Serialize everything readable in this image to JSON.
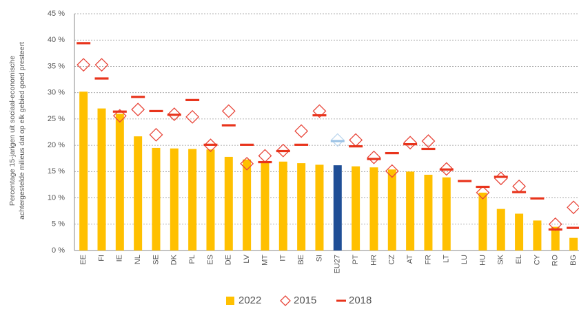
{
  "chart_data": {
    "type": "bar",
    "y_label": [
      "Percentage 15-jarigen uit sociaal-economische",
      "achtergestelde milieus dat op elk gebied goed presteert"
    ],
    "categories": [
      "EE",
      "FI",
      "IE",
      "NL",
      "SE",
      "DK",
      "PL",
      "ES",
      "DE",
      "LV",
      "MT",
      "IT",
      "BE",
      "SI",
      "EU27",
      "PT",
      "HR",
      "CZ",
      "AT",
      "FR",
      "LT",
      "LU",
      "HU",
      "SK",
      "EL",
      "CY",
      "RO",
      "BG"
    ],
    "series": [
      {
        "name": "2022",
        "marker": "bar",
        "color": "#ffc000",
        "colors": [
          "#ffc000",
          "#ffc000",
          "#ffc000",
          "#ffc000",
          "#ffc000",
          "#ffc000",
          "#ffc000",
          "#ffc000",
          "#ffc000",
          "#ffc000",
          "#ffc000",
          "#ffc000",
          "#ffc000",
          "#ffc000",
          "#1f4e96",
          "#ffc000",
          "#ffc000",
          "#ffc000",
          "#ffc000",
          "#ffc000",
          "#ffc000",
          "#ffc000",
          "#ffc000",
          "#ffc000",
          "#ffc000",
          "#ffc000",
          "#ffc000",
          "#ffc000"
        ],
        "values": [
          30.2,
          27,
          26,
          21.7,
          19.5,
          19.4,
          19.3,
          19.2,
          17.8,
          17.3,
          17,
          16.9,
          16.6,
          16.3,
          16.2,
          16,
          15.8,
          15.4,
          15,
          14.4,
          13.9,
          null,
          11,
          7.9,
          7,
          5.7,
          4.5,
          2.4
        ]
      },
      {
        "name": "2015",
        "marker": "diamond",
        "color": "#e8463a",
        "colors": [
          "#e8463a",
          "#e8463a",
          "#e8463a",
          "#e8463a",
          "#e8463a",
          "#e8463a",
          "#e8463a",
          "#e8463a",
          "#e8463a",
          "#e8463a",
          "#e8463a",
          "#e8463a",
          "#e8463a",
          "#e8463a",
          "#bdd7ee",
          "#e8463a",
          "#e8463a",
          "#e8463a",
          "#e8463a",
          "#e8463a",
          "#e8463a",
          "#e8463a",
          "#e8463a",
          "#e8463a",
          "#e8463a",
          "#e8463a",
          "#e8463a",
          "#e8463a"
        ],
        "values": [
          35.3,
          35.3,
          25.6,
          26.8,
          22,
          25.9,
          25.4,
          20,
          26.5,
          16.5,
          18,
          19,
          22.7,
          26.5,
          21,
          21,
          17.7,
          15.1,
          20.5,
          20.8,
          15.5,
          null,
          11,
          13.7,
          12.2,
          null,
          5,
          8.2
        ]
      },
      {
        "name": "2018",
        "marker": "dash",
        "color": "#e8341c",
        "colors": [
          "#e8341c",
          "#e8341c",
          "#e8341c",
          "#e8341c",
          "#e8341c",
          "#e8341c",
          "#e8341c",
          "#e8341c",
          "#e8341c",
          "#e8341c",
          "#e8341c",
          "#e8341c",
          "#e8341c",
          "#e8341c",
          "#9dc3e6",
          "#e8341c",
          "#e8341c",
          "#e8341c",
          "#e8341c",
          "#e8341c",
          "#e8341c",
          "#e8341c",
          "#e8341c",
          "#e8341c",
          "#e8341c",
          "#e8341c",
          "#e8341c",
          "#e8341c"
        ],
        "values": [
          39.4,
          32.7,
          26.4,
          29.2,
          26.5,
          25.8,
          28.6,
          20.1,
          23.8,
          20.1,
          16.8,
          18.9,
          20.1,
          25.7,
          20.8,
          19.8,
          17.4,
          18.5,
          20.2,
          19.3,
          15.4,
          13.2,
          12.1,
          14,
          11.1,
          9.9,
          4,
          4.3
        ]
      }
    ],
    "ylim": [
      0,
      45
    ],
    "yticks": [
      {
        "value": 0,
        "label": "0 %"
      },
      {
        "value": 5,
        "label": "5 %"
      },
      {
        "value": 10,
        "label": "10 %"
      },
      {
        "value": 15,
        "label": "15 %"
      },
      {
        "value": 20,
        "label": "20 %"
      },
      {
        "value": 25,
        "label": "25 %"
      },
      {
        "value": 30,
        "label": "30 %"
      },
      {
        "value": 35,
        "label": "35 %"
      },
      {
        "value": 40,
        "label": "40 %"
      },
      {
        "value": 45,
        "label": "45 %"
      }
    ],
    "grid": true,
    "legend": "bottom"
  }
}
